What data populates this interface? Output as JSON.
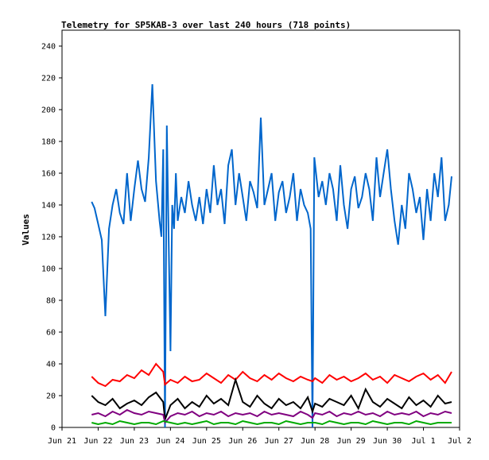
{
  "chart_data": {
    "type": "line",
    "title": "Telemetry for SP5KAB-3 over last 240 hours (718 points)",
    "ylabel": "Values",
    "xlabel": "",
    "ylim": [
      0,
      250
    ],
    "xlim": [
      "Jun 21",
      "Jul 2"
    ],
    "y_ticks": [
      0,
      20,
      40,
      60,
      80,
      100,
      120,
      140,
      160,
      180,
      200,
      220,
      240
    ],
    "x_ticks": [
      "Jun 21",
      "Jun 22",
      "Jun 23",
      "Jun 24",
      "Jun 25",
      "Jun 26",
      "Jun 27",
      "Jun 28",
      "Jun 29",
      "Jun 30",
      "Jul 1",
      "Jul 2"
    ],
    "grid": false,
    "series": [
      {
        "color": "#0066cc",
        "x": [
          0.82,
          0.9,
          1.0,
          1.1,
          1.2,
          1.3,
          1.4,
          1.5,
          1.6,
          1.7,
          1.8,
          1.9,
          2.0,
          2.1,
          2.2,
          2.3,
          2.4,
          2.5,
          2.6,
          2.7,
          2.75,
          2.8,
          2.85,
          2.9,
          3.0,
          3.05,
          3.1,
          3.15,
          3.2,
          3.3,
          3.4,
          3.5,
          3.6,
          3.7,
          3.8,
          3.9,
          4.0,
          4.1,
          4.2,
          4.3,
          4.4,
          4.5,
          4.6,
          4.7,
          4.8,
          4.9,
          5.0,
          5.1,
          5.2,
          5.3,
          5.4,
          5.5,
          5.6,
          5.7,
          5.8,
          5.9,
          6.0,
          6.1,
          6.2,
          6.3,
          6.4,
          6.5,
          6.6,
          6.7,
          6.8,
          6.88,
          6.93,
          6.98,
          7.1,
          7.2,
          7.3,
          7.4,
          7.5,
          7.6,
          7.7,
          7.8,
          7.9,
          8.0,
          8.1,
          8.2,
          8.3,
          8.4,
          8.5,
          8.6,
          8.7,
          8.8,
          8.9,
          9.0,
          9.1,
          9.2,
          9.3,
          9.4,
          9.5,
          9.6,
          9.7,
          9.8,
          9.9,
          10.0,
          10.1,
          10.2,
          10.3,
          10.4,
          10.5,
          10.6,
          10.7,
          10.78
        ],
        "values": [
          142,
          138,
          128,
          118,
          70,
          125,
          140,
          150,
          135,
          128,
          160,
          130,
          150,
          168,
          150,
          142,
          170,
          216,
          155,
          130,
          120,
          175,
          0,
          190,
          48,
          140,
          125,
          160,
          130,
          145,
          135,
          155,
          140,
          130,
          145,
          128,
          150,
          135,
          165,
          140,
          150,
          128,
          165,
          175,
          140,
          160,
          145,
          130,
          155,
          148,
          138,
          195,
          140,
          150,
          160,
          130,
          148,
          155,
          135,
          145,
          160,
          130,
          150,
          140,
          135,
          125,
          0,
          170,
          145,
          155,
          140,
          160,
          150,
          130,
          165,
          140,
          125,
          150,
          158,
          138,
          145,
          160,
          150,
          130,
          170,
          145,
          160,
          175,
          150,
          130,
          115,
          140,
          125,
          160,
          150,
          135,
          145,
          118,
          150,
          130,
          160,
          145,
          170,
          130,
          140,
          158
        ]
      },
      {
        "color": "#ff0000",
        "x": [
          0.82,
          1.0,
          1.2,
          1.4,
          1.6,
          1.8,
          2.0,
          2.2,
          2.4,
          2.6,
          2.8,
          2.85,
          3.0,
          3.2,
          3.4,
          3.6,
          3.8,
          4.0,
          4.2,
          4.4,
          4.6,
          4.8,
          5.0,
          5.2,
          5.4,
          5.6,
          5.8,
          6.0,
          6.2,
          6.4,
          6.6,
          6.8,
          6.93,
          7.0,
          7.2,
          7.4,
          7.6,
          7.8,
          8.0,
          8.2,
          8.4,
          8.6,
          8.8,
          9.0,
          9.2,
          9.4,
          9.6,
          9.8,
          10.0,
          10.2,
          10.4,
          10.6,
          10.78
        ],
        "values": [
          32,
          28,
          26,
          30,
          29,
          33,
          31,
          36,
          33,
          40,
          35,
          27,
          30,
          28,
          32,
          29,
          30,
          34,
          31,
          28,
          33,
          30,
          35,
          31,
          29,
          33,
          30,
          34,
          31,
          29,
          32,
          30,
          29,
          31,
          28,
          33,
          30,
          32,
          29,
          31,
          34,
          30,
          32,
          28,
          33,
          31,
          29,
          32,
          34,
          30,
          33,
          28,
          35
        ]
      },
      {
        "color": "#000000",
        "x": [
          0.82,
          1.0,
          1.2,
          1.4,
          1.6,
          1.8,
          2.0,
          2.2,
          2.4,
          2.6,
          2.8,
          2.85,
          3.0,
          3.2,
          3.4,
          3.6,
          3.8,
          4.0,
          4.2,
          4.4,
          4.6,
          4.8,
          5.0,
          5.2,
          5.4,
          5.6,
          5.8,
          6.0,
          6.2,
          6.4,
          6.6,
          6.8,
          6.93,
          7.0,
          7.2,
          7.4,
          7.6,
          7.8,
          8.0,
          8.2,
          8.4,
          8.6,
          8.8,
          9.0,
          9.2,
          9.4,
          9.6,
          9.8,
          10.0,
          10.2,
          10.4,
          10.6,
          10.78
        ],
        "values": [
          20,
          16,
          14,
          18,
          12,
          15,
          17,
          14,
          19,
          22,
          16,
          5,
          14,
          18,
          12,
          16,
          13,
          20,
          15,
          18,
          14,
          30,
          16,
          13,
          20,
          15,
          12,
          18,
          14,
          16,
          12,
          19,
          10,
          15,
          13,
          18,
          16,
          14,
          20,
          12,
          24,
          16,
          13,
          18,
          15,
          12,
          19,
          14,
          17,
          13,
          20,
          15,
          16
        ]
      },
      {
        "color": "#800080",
        "x": [
          0.82,
          1.0,
          1.2,
          1.4,
          1.6,
          1.8,
          2.0,
          2.2,
          2.4,
          2.6,
          2.8,
          2.85,
          3.0,
          3.2,
          3.4,
          3.6,
          3.8,
          4.0,
          4.2,
          4.4,
          4.6,
          4.8,
          5.0,
          5.2,
          5.4,
          5.6,
          5.8,
          6.0,
          6.2,
          6.4,
          6.6,
          6.8,
          6.93,
          7.0,
          7.2,
          7.4,
          7.6,
          7.8,
          8.0,
          8.2,
          8.4,
          8.6,
          8.8,
          9.0,
          9.2,
          9.4,
          9.6,
          9.8,
          10.0,
          10.2,
          10.4,
          10.6,
          10.78
        ],
        "values": [
          8,
          9,
          7,
          10,
          8,
          11,
          9,
          8,
          10,
          9,
          8,
          3,
          7,
          9,
          8,
          10,
          7,
          9,
          8,
          10,
          7,
          9,
          8,
          9,
          7,
          10,
          8,
          9,
          8,
          7,
          10,
          8,
          6,
          9,
          8,
          10,
          7,
          9,
          8,
          10,
          8,
          9,
          7,
          10,
          8,
          9,
          8,
          10,
          7,
          9,
          8,
          10,
          9
        ]
      },
      {
        "color": "#00aa00",
        "x": [
          0.82,
          1.0,
          1.2,
          1.4,
          1.6,
          1.8,
          2.0,
          2.2,
          2.4,
          2.6,
          2.8,
          3.0,
          3.2,
          3.4,
          3.6,
          3.8,
          4.0,
          4.2,
          4.4,
          4.6,
          4.8,
          5.0,
          5.2,
          5.4,
          5.6,
          5.8,
          6.0,
          6.2,
          6.4,
          6.6,
          6.8,
          7.0,
          7.2,
          7.4,
          7.6,
          7.8,
          8.0,
          8.2,
          8.4,
          8.6,
          8.8,
          9.0,
          9.2,
          9.4,
          9.6,
          9.8,
          10.0,
          10.2,
          10.4,
          10.6,
          10.78
        ],
        "values": [
          3,
          2,
          3,
          2,
          4,
          3,
          2,
          3,
          3,
          2,
          4,
          3,
          2,
          3,
          2,
          3,
          4,
          2,
          3,
          3,
          2,
          4,
          3,
          2,
          3,
          3,
          2,
          4,
          3,
          2,
          3,
          3,
          2,
          4,
          3,
          2,
          3,
          3,
          2,
          4,
          3,
          2,
          3,
          3,
          2,
          4,
          3,
          2,
          3,
          3,
          3
        ]
      }
    ]
  }
}
